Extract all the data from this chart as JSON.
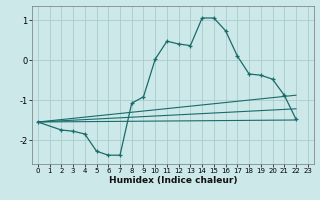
{
  "xlabel": "Humidex (Indice chaleur)",
  "background_color": "#cce8e8",
  "grid_color": "#aacccc",
  "line_color": "#1a6b6b",
  "xlim": [
    -0.5,
    23.5
  ],
  "ylim": [
    -2.6,
    1.35
  ],
  "xticks": [
    0,
    1,
    2,
    3,
    4,
    5,
    6,
    7,
    8,
    9,
    10,
    11,
    12,
    13,
    14,
    15,
    16,
    17,
    18,
    19,
    20,
    21,
    22,
    23
  ],
  "yticks": [
    -2,
    -1,
    0,
    1
  ],
  "series1_x": [
    0,
    2,
    3,
    4,
    5,
    6,
    7,
    8,
    9,
    10,
    11,
    12,
    13,
    14,
    15,
    16,
    17,
    18,
    19,
    20,
    21,
    22
  ],
  "series1_y": [
    -1.55,
    -1.75,
    -1.78,
    -1.85,
    -2.28,
    -2.38,
    -2.38,
    -1.08,
    -0.92,
    0.02,
    0.47,
    0.4,
    0.36,
    1.05,
    1.05,
    0.73,
    0.1,
    -0.35,
    -0.38,
    -0.48,
    -0.88,
    -1.48
  ],
  "line2_x": [
    0,
    22
  ],
  "line2_y": [
    -1.55,
    -1.5
  ],
  "line3_x": [
    0,
    22
  ],
  "line3_y": [
    -1.55,
    -1.22
  ],
  "line4_x": [
    0,
    22
  ],
  "line4_y": [
    -1.55,
    -0.88
  ]
}
